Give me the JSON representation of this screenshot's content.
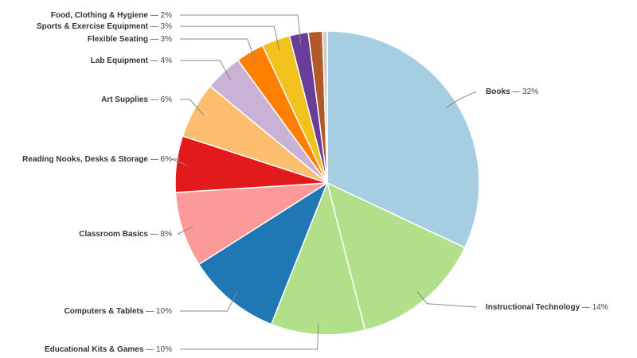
{
  "chart_data": {
    "type": "pie",
    "title": "",
    "legend": "none",
    "slices": [
      {
        "label": "Books",
        "value": 32,
        "value_label": "32%",
        "color": "#a6cee3"
      },
      {
        "label": "Instructional Technology",
        "value": 14,
        "value_label": "14%",
        "color": "#b2df8a"
      },
      {
        "label": "Educational Kits & Games",
        "value": 10,
        "value_label": "10%",
        "color": "#b2df8a"
      },
      {
        "label": "Computers & Tablets",
        "value": 10,
        "value_label": "10%",
        "color": "#1f78b4"
      },
      {
        "label": "Classroom Basics",
        "value": 8,
        "value_label": "8%",
        "color": "#fb9a99"
      },
      {
        "label": "Reading Nooks, Desks & Storage",
        "value": 6,
        "value_label": "6%",
        "color": "#e31a1c"
      },
      {
        "label": "Art Supplies",
        "value": 6,
        "value_label": "6%",
        "color": "#fdbf6f"
      },
      {
        "label": "Lab Equipment",
        "value": 4,
        "value_label": "4%",
        "color": "#cab2d6"
      },
      {
        "label": "Flexible Seating",
        "value": 3,
        "value_label": "3%",
        "color": "#ff7f00"
      },
      {
        "label": "Sports & Exercise Equipment",
        "value": 3,
        "value_label": "3%",
        "color": "#f1c21b"
      },
      {
        "label": "Food, Clothing & Hygiene",
        "value": 2,
        "value_label": "2%",
        "color": "#6a3d9a"
      },
      {
        "label": "",
        "value": 1.5,
        "value_label": "",
        "color": "#b15928"
      },
      {
        "label": "",
        "value": 0.5,
        "value_label": "",
        "color": "#cccccc"
      }
    ]
  }
}
